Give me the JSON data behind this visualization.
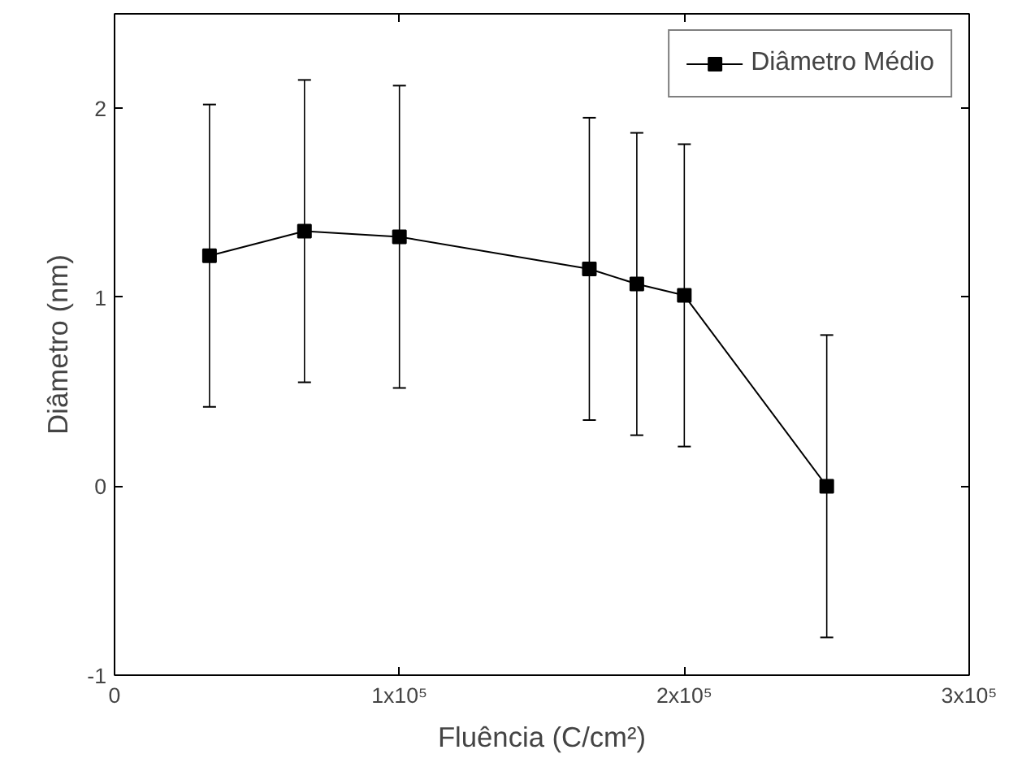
{
  "chart_data": {
    "type": "line",
    "xlabel": "Fluência (C/cm²)",
    "ylabel": "Diâmetro (nm)",
    "x": [
      33333,
      66667,
      100000,
      166667,
      183333,
      200000,
      250000
    ],
    "series": [
      {
        "name": "Diâmetro Médio",
        "color": "#000000",
        "values": [
          1.22,
          1.35,
          1.32,
          1.15,
          1.07,
          1.01,
          0
        ],
        "errors": [
          0.8,
          0.8,
          0.8,
          0.8,
          0.8,
          0.8,
          0.8
        ]
      }
    ],
    "xlim": [
      0,
      300000
    ],
    "ylim": [
      -1,
      2.5
    ],
    "xticks": [
      0,
      {
        "value": 100000,
        "label": "1x10⁵"
      },
      {
        "value": 200000,
        "label": "2x10⁵"
      },
      {
        "value": 300000,
        "label": "3x10⁵"
      }
    ],
    "yticks": [
      -1,
      0,
      1,
      2
    ],
    "marker": "square",
    "line_style": "solid",
    "grid": false,
    "legend": "top right"
  }
}
